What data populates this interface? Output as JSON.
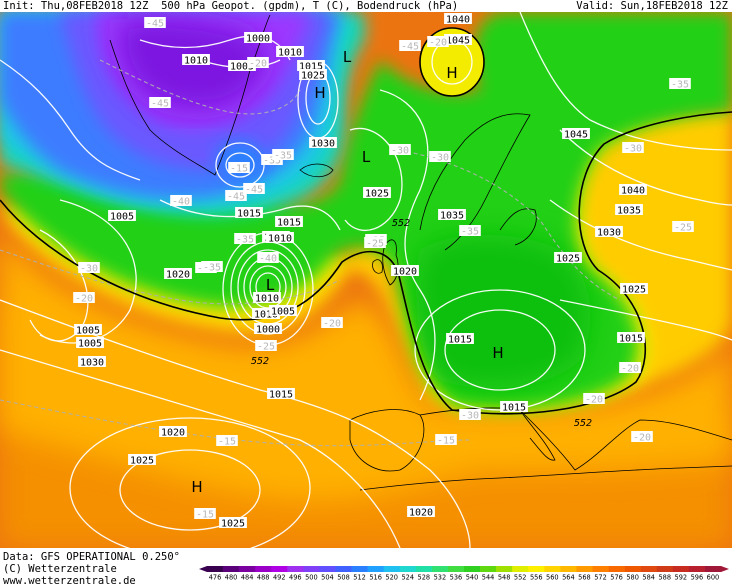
{
  "header": {
    "init": "Init: Thu,08FEB2018 12Z",
    "parameters": "500 hPa Geopot. (gpdm), T (C), Bodendruck (hPa)",
    "valid": "Valid: Sun,18FEB2018 12Z"
  },
  "footer": {
    "data_line": "Data: GFS OPERATIONAL 0.250°",
    "copyright_line": "(C) Wetterzentrale",
    "url_line": "www.wetterzentrale.de"
  },
  "legend": {
    "values": [
      "476",
      "480",
      "484",
      "488",
      "492",
      "496",
      "500",
      "504",
      "508",
      "512",
      "516",
      "520",
      "524",
      "528",
      "532",
      "536",
      "540",
      "544",
      "548",
      "552",
      "556",
      "560",
      "564",
      "568",
      "572",
      "576",
      "580",
      "584",
      "588",
      "592",
      "596",
      "600"
    ],
    "colors": [
      "#3a0050",
      "#5a007a",
      "#7a00a0",
      "#9a00c8",
      "#b000e6",
      "#a030f0",
      "#8040f8",
      "#6050ff",
      "#4060ff",
      "#2a80ff",
      "#20a0ff",
      "#20c0f0",
      "#20d8d0",
      "#20e0a8",
      "#30e070",
      "#40dc40",
      "#30d020",
      "#60d810",
      "#a0e000",
      "#e0ee00",
      "#fff000",
      "#ffd400",
      "#ffb800",
      "#ff9a00",
      "#ff8000",
      "#f86a00",
      "#f05800",
      "#e04a10",
      "#d03c18",
      "#c82c20",
      "#b82030",
      "#a01838"
    ],
    "marker_value": "552"
  },
  "map": {
    "colors": {
      "purple_deep": "#7b14e0",
      "purple": "#9c38ff",
      "blue_violet": "#6a58ff",
      "blue": "#3c7cff",
      "cyan": "#1ec8e6",
      "teal": "#12d8b4",
      "green_light": "#48e046",
      "green": "#22d018",
      "green_dark": "#10c010",
      "yellow": "#f4ec00",
      "gold": "#ffcc00",
      "orange_light": "#ffb000",
      "orange": "#f59000",
      "orange_dark": "#ec7410",
      "red_orange": "#e05a1c",
      "isobar": "#ffffff",
      "contour552": "#000000",
      "coast": "#000000"
    },
    "isobar_labels": [
      "1040",
      "1045",
      "1000",
      "1010",
      "1010",
      "1005",
      "1015",
      "1025",
      "1030",
      "1045",
      "1040",
      "1035",
      "1010",
      "1025",
      "1020",
      "1035",
      "1030",
      "1025",
      "1005",
      "1015",
      "1015",
      "1010",
      "1005",
      "1020",
      "1025",
      "1030",
      "1005",
      "1010",
      "1015",
      "1015",
      "1015",
      "1015",
      "1010",
      "1020",
      "1025",
      "1020",
      "1025",
      "1000",
      "1005"
    ],
    "temp_labels": [
      "-45",
      "-35",
      "-45",
      "-45",
      "-30",
      "-35",
      "-35",
      "-40",
      "-45",
      "-45",
      "-30",
      "-25",
      "-30",
      "-35",
      "-35",
      "-25",
      "-40",
      "-35",
      "-30",
      "-30",
      "-25",
      "-20",
      "-20",
      "-20",
      "-20",
      "-30",
      "-15",
      "-25",
      "-20",
      "-15",
      "-15",
      "-15",
      "-20",
      "-20"
    ],
    "centers": [
      "H",
      "L",
      "H",
      "L",
      "L",
      "H",
      "H"
    ],
    "contour_label": "552"
  }
}
